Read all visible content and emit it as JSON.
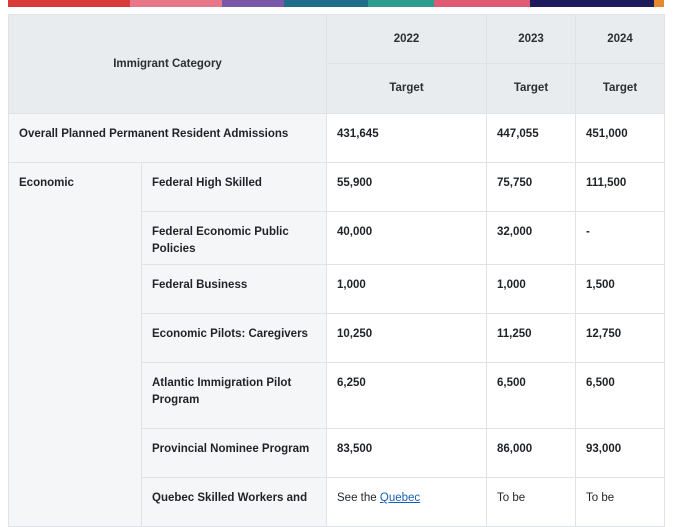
{
  "stripe_colors": [
    "#d93b3b",
    "#e8778a",
    "#7a5aa8",
    "#1f6f8b",
    "#2a9d8f",
    "#e05a73",
    "#1d1d5e",
    "#e68a2e"
  ],
  "header": {
    "category_label": "Immigrant Category",
    "years": [
      "2022",
      "2023",
      "2024"
    ],
    "target_label": "Target"
  },
  "rows": {
    "overall": {
      "label": "Overall Planned Permanent Resident Admissions",
      "values": [
        "431,645",
        "447,055",
        "451,000"
      ]
    },
    "economic_label": "Economic",
    "economic": [
      {
        "label": "Federal High Skilled",
        "values": [
          "55,900",
          "75,750",
          "111,500"
        ]
      },
      {
        "label": "Federal Economic Public Policies",
        "values": [
          "40,000",
          "32,000",
          "-"
        ]
      },
      {
        "label": "Federal Business",
        "values": [
          "1,000",
          "1,000",
          "1,500"
        ]
      },
      {
        "label": "Economic Pilots: Caregivers",
        "values": [
          "10,250",
          "11,250",
          "12,750"
        ]
      },
      {
        "label": "Atlantic Immigration Pilot Program",
        "values": [
          "6,250",
          "6,500",
          "6,500"
        ]
      },
      {
        "label": "Provincial Nominee Program",
        "values": [
          "83,500",
          "86,000",
          "93,000"
        ]
      }
    ],
    "quebec": {
      "label": "Quebec Skilled Workers and",
      "value_2022_prefix": "See the",
      "value_2022_link": "Quebec",
      "value_2023": "To be",
      "value_2024": "To be"
    }
  }
}
